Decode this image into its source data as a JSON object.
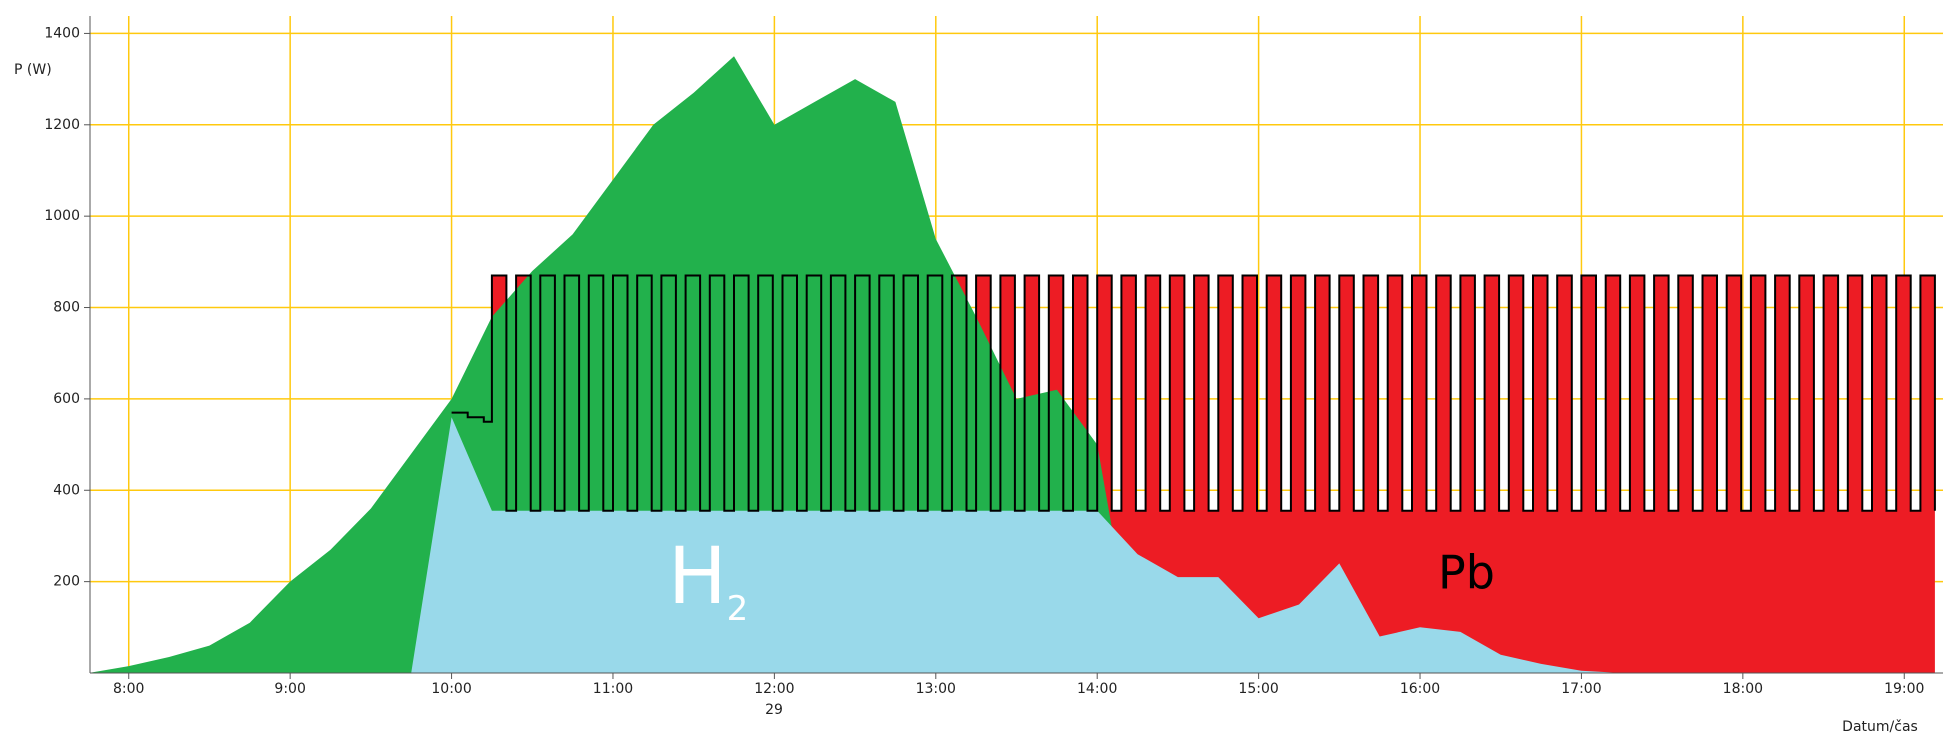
{
  "chart_data": {
    "type": "area",
    "y_label": "P (W)",
    "x_label": "Datum/čas",
    "date_label": "29",
    "annotations": [
      {
        "text": "H",
        "subscript": "2"
      },
      {
        "text": "Pb"
      }
    ],
    "xlim": [
      7.76,
      19.24
    ],
    "xticks": [
      {
        "value": 8,
        "label": "8:00"
      },
      {
        "value": 9,
        "label": "9:00"
      },
      {
        "value": 10,
        "label": "10:00"
      },
      {
        "value": 11,
        "label": "11:00"
      },
      {
        "value": 12,
        "label": "12:00"
      },
      {
        "value": 13,
        "label": "13:00"
      },
      {
        "value": 14,
        "label": "14:00"
      },
      {
        "value": 15,
        "label": "15:00"
      },
      {
        "value": 16,
        "label": "16:00"
      },
      {
        "value": 17,
        "label": "17:00"
      },
      {
        "value": 18,
        "label": "18:00"
      },
      {
        "value": 19,
        "label": "19:00"
      }
    ],
    "ylim": [
      0,
      1425
    ],
    "yticks": [
      200,
      400,
      600,
      800,
      1000,
      1200,
      1400
    ],
    "grid": true,
    "x": [
      7.75,
      8,
      8.25,
      8.5,
      8.75,
      9,
      9.25,
      9.5,
      9.75,
      10,
      10.25,
      10.5,
      10.75,
      11,
      11.25,
      11.5,
      11.75,
      12,
      12.25,
      12.5,
      12.75,
      13,
      13.25,
      13.5,
      13.75,
      14,
      14.25,
      14.5,
      14.75,
      15,
      15.25,
      15.5,
      15.75,
      16,
      16.25,
      16.5,
      16.75,
      17,
      17.25,
      17.5,
      17.75,
      18,
      18.25,
      18.5,
      18.75,
      19,
      19.25
    ],
    "series": [
      {
        "color": "#ed1c24",
        "fill": true,
        "step": true,
        "x": [
          10,
          10.1,
          10.2,
          10.25,
          10.34,
          10.4,
          10.49,
          10.55,
          10.64,
          10.7,
          10.79,
          10.85,
          10.94,
          11,
          11.09,
          11.15,
          11.24,
          11.3,
          11.39,
          11.45,
          11.54,
          11.6,
          11.69,
          11.75,
          11.84,
          11.9,
          11.99,
          12.05,
          12.14,
          12.2,
          12.29,
          12.35,
          12.44,
          12.5,
          12.59,
          12.65,
          12.74,
          12.8,
          12.89,
          12.95,
          13.04,
          13.1,
          13.19,
          13.25,
          13.34,
          13.4,
          13.49,
          13.55,
          13.64,
          13.7,
          13.79,
          13.85,
          13.94,
          14,
          14.09,
          14.15,
          14.24,
          14.3,
          14.39,
          14.45,
          14.54,
          14.6,
          14.69,
          14.75,
          14.84,
          14.9,
          14.99,
          15.05,
          15.14,
          15.2,
          15.29,
          15.35,
          15.44,
          15.5,
          15.59,
          15.65,
          15.74,
          15.8,
          15.89,
          15.95,
          16.04,
          16.1,
          16.19,
          16.25,
          16.34,
          16.4,
          16.49,
          16.55,
          16.64,
          16.7,
          16.79,
          16.85,
          16.94,
          17,
          17.09,
          17.15,
          17.24,
          17.3,
          17.39,
          17.45,
          17.54,
          17.6,
          17.69,
          17.75,
          17.84,
          17.9,
          17.99,
          18.05,
          18.14,
          18.2,
          18.29,
          18.35,
          18.44,
          18.5,
          18.59,
          18.65,
          18.74,
          18.8,
          18.89,
          18.95,
          19.04,
          19.1,
          19.19
        ],
        "values": [
          570,
          560,
          550,
          870,
          355,
          870,
          355,
          870,
          355,
          870,
          355,
          870,
          355,
          870,
          355,
          870,
          355,
          870,
          355,
          870,
          355,
          870,
          355,
          870,
          355,
          870,
          355,
          870,
          355,
          870,
          355,
          870,
          355,
          870,
          355,
          870,
          355,
          870,
          355,
          870,
          355,
          870,
          355,
          870,
          355,
          870,
          355,
          870,
          355,
          870,
          355,
          870,
          355,
          870,
          355,
          870,
          355,
          870,
          355,
          870,
          355,
          870,
          355,
          870,
          355,
          870,
          355,
          870,
          355,
          870,
          355,
          870,
          355,
          870,
          355,
          870,
          355,
          870,
          355,
          870,
          355,
          870,
          355,
          870,
          355,
          870,
          355,
          870,
          355,
          870,
          355,
          870,
          355,
          870,
          355,
          870,
          355,
          870,
          355,
          870,
          355,
          870,
          355,
          870,
          355,
          870,
          355,
          870,
          355,
          870,
          355,
          870,
          355,
          870,
          355,
          870,
          355,
          870,
          355,
          870,
          355,
          870,
          355
        ]
      },
      {
        "color": "#22b14c",
        "fill": true,
        "values": [
          0,
          15,
          35,
          60,
          110,
          200,
          270,
          360,
          480,
          600,
          780,
          880,
          960,
          1080,
          1200,
          1270,
          1350,
          1200,
          1250,
          1300,
          1250,
          950,
          780,
          600,
          620,
          500,
          0,
          0,
          0,
          0,
          0,
          0,
          0,
          0,
          0,
          0,
          0,
          0,
          0,
          0,
          0,
          0,
          0,
          0,
          0,
          0,
          0
        ]
      },
      {
        "color": "#99d9ea",
        "fill": true,
        "values": [
          0,
          0,
          0,
          0,
          0,
          0,
          0,
          0,
          0,
          560,
          355,
          355,
          355,
          355,
          355,
          355,
          355,
          355,
          355,
          355,
          355,
          355,
          355,
          355,
          355,
          355,
          260,
          210,
          210,
          120,
          150,
          240,
          80,
          100,
          90,
          40,
          20,
          5,
          0,
          0,
          0,
          0,
          0,
          0,
          0,
          0,
          0
        ]
      },
      {
        "color": "#000000",
        "fill": false,
        "step": true,
        "same_as": 0
      }
    ]
  }
}
